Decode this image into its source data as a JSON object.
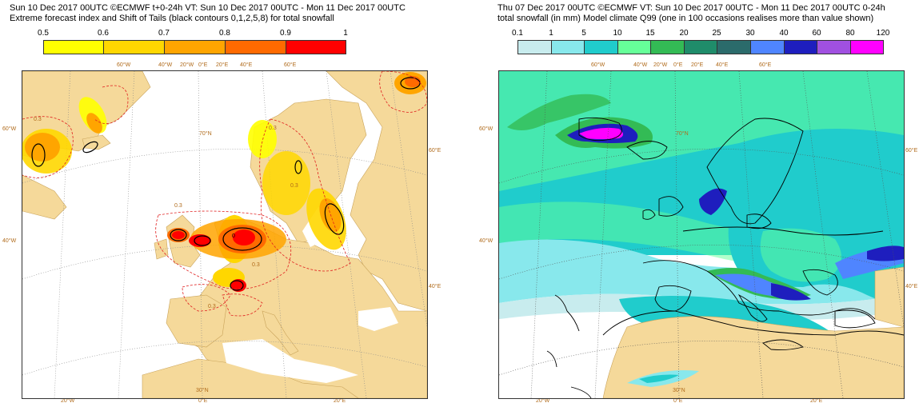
{
  "left": {
    "title_line1": "Sun 10 Dec 2017 00UTC ©ECMWF t+0-24h  VT: Sun 10 Dec 2017 00UTC - Mon 11 Dec 2017 00UTC",
    "title_line2": "Extreme forecast index and Shift of Tails (black contours 0,1,2,5,8) for total snowfall",
    "colorbar": {
      "ticks": [
        "0.5",
        "0.6",
        "0.7",
        "0.8",
        "0.9",
        "1"
      ],
      "colors": [
        "#ffff00",
        "#ffd700",
        "#ffa500",
        "#ff6a00",
        "#ff0000"
      ]
    },
    "contour_label": "0.3",
    "sot_label": "0",
    "top_labels": [
      "60°W",
      "40°W",
      "20°W",
      "0°E",
      "20°E",
      "40°E",
      "60°E"
    ],
    "left_labels": [
      "60°W",
      "40°W"
    ],
    "right_labels": [
      "60°E",
      "40°E"
    ],
    "bottom_labels": [
      "20°W",
      "0°E",
      "20°E"
    ],
    "inner_labels": [
      "70°N",
      "30°N"
    ]
  },
  "right": {
    "title_line1": "Thu 07 Dec 2017 00UTC ©ECMWF VT: Sun 10 Dec 2017 00UTC - Mon 11 Dec 2017 00UTC   0-24h",
    "title_line2": "total snowfall (in mm)  Model climate Q99 (one in 100 occasions realises more than value shown)",
    "colorbar": {
      "ticks": [
        "0.1",
        "1",
        "5",
        "10",
        "15",
        "20",
        "25",
        "30",
        "40",
        "60",
        "80",
        "120"
      ],
      "colors": [
        "#c8ecee",
        "#88e8ec",
        "#20cccc",
        "#66ff99",
        "#33bb55",
        "#1f8c6a",
        "#2b6b6b",
        "#4f85ff",
        "#1e1ebe",
        "#a050e0",
        "#ff00ff",
        "#800090"
      ]
    },
    "top_labels": [
      "60°W",
      "40°W",
      "20°W",
      "0°E",
      "20°E",
      "40°E",
      "60°E"
    ],
    "left_labels": [
      "60°W",
      "40°W"
    ],
    "right_labels": [
      "60°E",
      "40°E"
    ],
    "bottom_labels": [
      "20°W",
      "0°E",
      "20°E"
    ],
    "inner_labels": [
      "70°N",
      "30°N"
    ]
  },
  "colors": {
    "land": "#f5d99a",
    "land_edge": "#c9a35a",
    "sea": "#ffffff",
    "graticule": "#888888"
  }
}
